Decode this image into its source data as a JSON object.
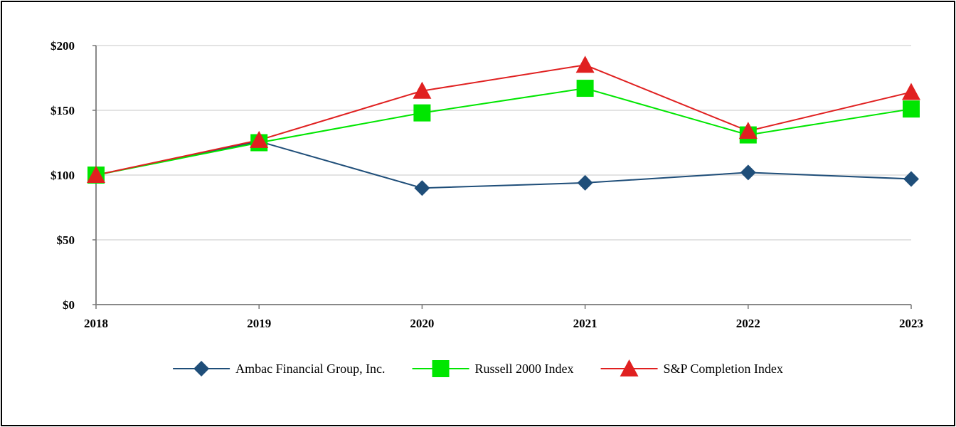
{
  "chart_data": {
    "type": "line",
    "title": "",
    "xlabel": "",
    "ylabel": "",
    "x": [
      "2018",
      "2019",
      "2020",
      "2021",
      "2022",
      "2023"
    ],
    "ylim": [
      0,
      200
    ],
    "yticks": [
      0,
      50,
      100,
      150,
      200
    ],
    "ytick_labels": [
      "$0",
      "$50",
      "$100",
      "$150",
      "$200"
    ],
    "grid": "horizontal",
    "legend_position": "bottom",
    "series": [
      {
        "name": "Ambac Financial Group, Inc.",
        "color": "#1f4e79",
        "marker": "diamond",
        "values": [
          100,
          126,
          90,
          94,
          102,
          97
        ]
      },
      {
        "name": "Russell 2000 Index",
        "color": "#00e600",
        "marker": "square",
        "values": [
          100,
          125,
          148,
          167,
          131,
          151
        ]
      },
      {
        "name": "S&P Completion Index",
        "color": "#e02020",
        "marker": "triangle",
        "values": [
          100,
          127,
          165,
          185,
          134,
          164
        ]
      }
    ]
  }
}
